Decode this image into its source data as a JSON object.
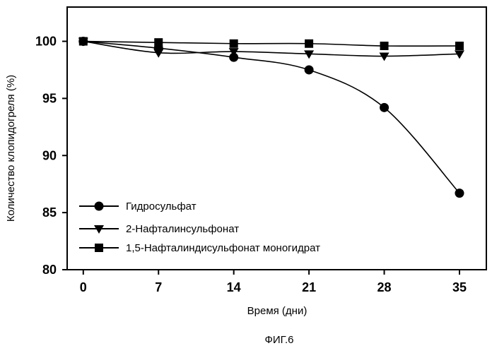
{
  "figure_caption": "ФИГ.6",
  "chart_data": {
    "type": "line",
    "xlabel": "Время (дни)",
    "ylabel": "Количество клопидогреля (%)",
    "x": [
      0,
      7,
      14,
      21,
      28,
      35
    ],
    "xlim": [
      -1.5,
      37.5
    ],
    "ylim": [
      80,
      103
    ],
    "yticks": [
      80,
      85,
      90,
      95,
      100
    ],
    "grid": false,
    "legend_position": "bottom-left",
    "series": [
      {
        "name": "Гидросульфат",
        "marker": "circle",
        "values": [
          100,
          99.4,
          98.6,
          97.5,
          94.2,
          86.7
        ]
      },
      {
        "name": "2-Нафталинсульфонат",
        "marker": "triangle-down",
        "values": [
          100,
          99.0,
          99.1,
          98.9,
          98.7,
          98.9
        ]
      },
      {
        "name": "1,5-Нафталиндисульфонат моногидрат",
        "marker": "square",
        "values": [
          100,
          99.9,
          99.8,
          99.8,
          99.6,
          99.6
        ]
      }
    ]
  }
}
